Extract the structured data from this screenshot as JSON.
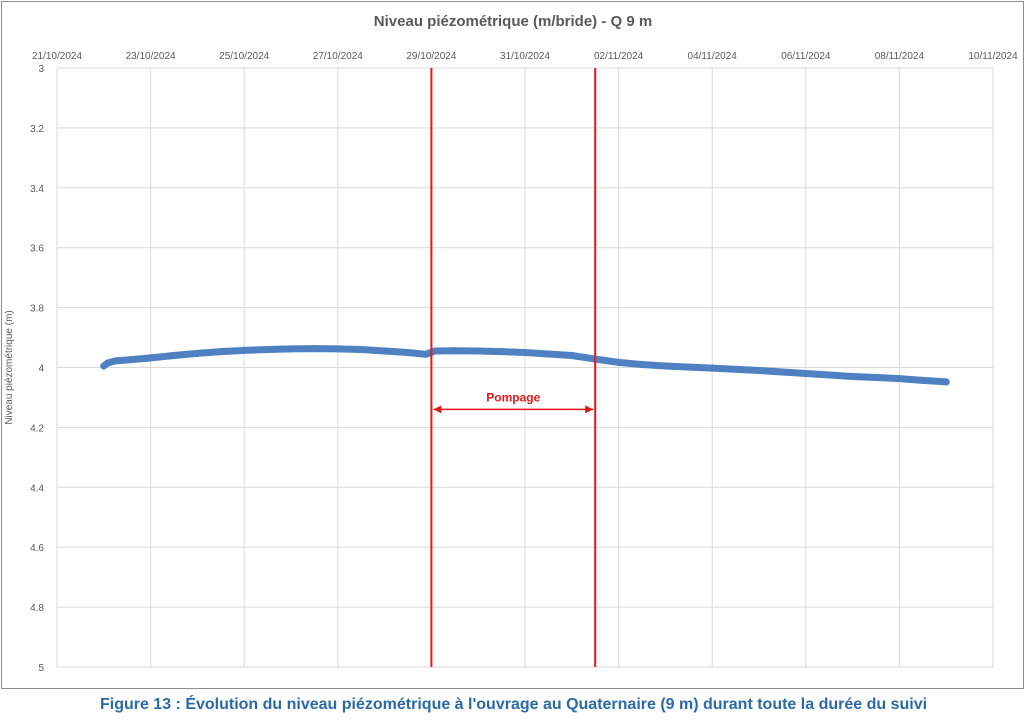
{
  "chart_data": {
    "type": "line",
    "title": "Niveau piézométrique (m/bride) - Q 9 m",
    "ylabel": "Niveau piézométrique (m)",
    "xlabel": "",
    "x_ticks": [
      "21/10/2024",
      "23/10/2024",
      "25/10/2024",
      "27/10/2024",
      "29/10/2024",
      "31/10/2024",
      "02/11/2024",
      "04/11/2024",
      "06/11/2024",
      "08/11/2024",
      "10/11/2024"
    ],
    "y_ticks": [
      "3",
      "3.2",
      "3.4",
      "3.6",
      "3.8",
      "4",
      "4.2",
      "4.4",
      "4.6",
      "4.8",
      "5"
    ],
    "xlim": [
      "2024-10-21",
      "2024-11-10"
    ],
    "ylim": [
      3,
      5
    ],
    "y_inverted": true,
    "grid": true,
    "series": [
      {
        "color": "#4f81c2",
        "points": [
          [
            "2024-10-22 00:00",
            3.995
          ],
          [
            "2024-10-22 02:00",
            3.985
          ],
          [
            "2024-10-22 06:00",
            3.978
          ],
          [
            "2024-10-22 12:00",
            3.975
          ],
          [
            "2024-10-23 00:00",
            3.968
          ],
          [
            "2024-10-23 12:00",
            3.96
          ],
          [
            "2024-10-24 00:00",
            3.953
          ],
          [
            "2024-10-24 12:00",
            3.947
          ],
          [
            "2024-10-25 00:00",
            3.943
          ],
          [
            "2024-10-25 12:00",
            3.94
          ],
          [
            "2024-10-26 00:00",
            3.938
          ],
          [
            "2024-10-26 12:00",
            3.937
          ],
          [
            "2024-10-27 00:00",
            3.938
          ],
          [
            "2024-10-27 12:00",
            3.94
          ],
          [
            "2024-10-28 00:00",
            3.945
          ],
          [
            "2024-10-28 12:00",
            3.95
          ],
          [
            "2024-10-28 21:00",
            3.956
          ],
          [
            "2024-10-29 02:00",
            3.945
          ],
          [
            "2024-10-29 12:00",
            3.944
          ],
          [
            "2024-10-30 00:00",
            3.945
          ],
          [
            "2024-10-30 12:00",
            3.947
          ],
          [
            "2024-10-31 00:00",
            3.95
          ],
          [
            "2024-10-31 12:00",
            3.955
          ],
          [
            "2024-11-01 00:00",
            3.96
          ],
          [
            "2024-11-01 12:00",
            3.972
          ],
          [
            "2024-11-02 00:00",
            3.983
          ],
          [
            "2024-11-02 12:00",
            3.99
          ],
          [
            "2024-11-03 00:00",
            3.995
          ],
          [
            "2024-11-04 00:00",
            4.002
          ],
          [
            "2024-11-05 00:00",
            4.01
          ],
          [
            "2024-11-06 00:00",
            4.02
          ],
          [
            "2024-11-07 00:00",
            4.03
          ],
          [
            "2024-11-08 00:00",
            4.037
          ],
          [
            "2024-11-08 12:00",
            4.043
          ],
          [
            "2024-11-09 00:00",
            4.048
          ]
        ]
      }
    ],
    "markers": {
      "lines": [
        "2024-10-29 00:00",
        "2024-11-01 12:00"
      ],
      "color": "#e8161b",
      "label": "Pompage",
      "label_level": 4.14
    }
  },
  "caption": "Figure 13 : Évolution du niveau piézométrique à l'ouvrage au Quaternaire (9 m) durant toute la durée du suivi"
}
